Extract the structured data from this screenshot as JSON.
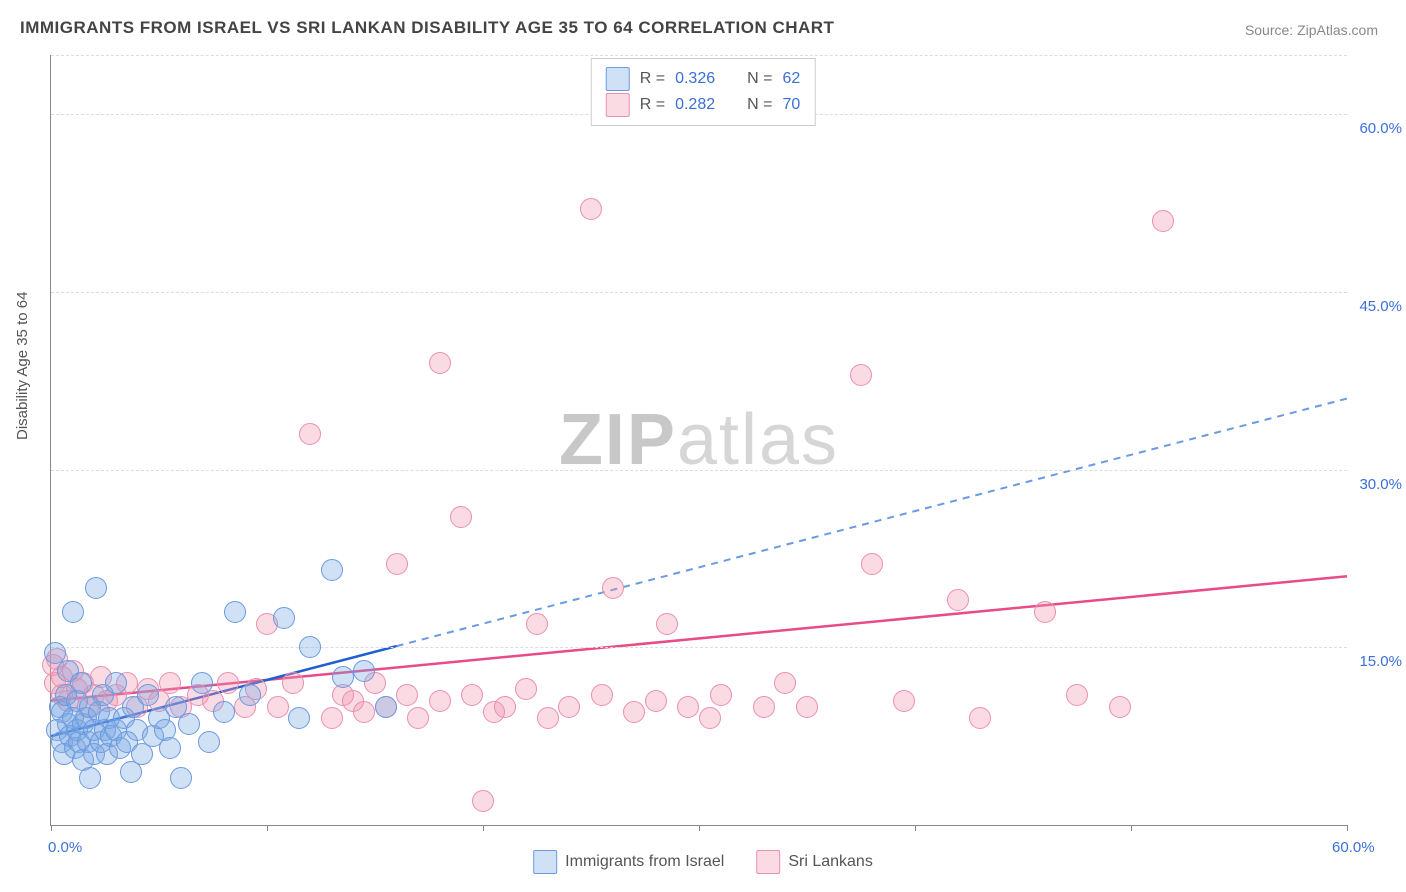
{
  "title": "IMMIGRANTS FROM ISRAEL VS SRI LANKAN DISABILITY AGE 35 TO 64 CORRELATION CHART",
  "source_label": "Source:",
  "source_value": "ZipAtlas.com",
  "ylabel": "Disability Age 35 to 64",
  "watermark_a": "ZIP",
  "watermark_b": "atlas",
  "chart": {
    "type": "scatter",
    "xlim": [
      0,
      60
    ],
    "ylim": [
      0,
      65
    ],
    "background_color": "#ffffff",
    "grid_color": "#dcdcdc",
    "axis_color": "#888888",
    "tick_label_color": "#3a6fd8",
    "tick_fontsize": 15,
    "ylabel_color": "#555555",
    "ylabel_fontsize": 15,
    "title_color": "#444444",
    "title_fontsize": 17,
    "y_gridlines": [
      15,
      30,
      45,
      60,
      65
    ],
    "y_tick_labels": [
      {
        "v": 15,
        "t": "15.0%"
      },
      {
        "v": 30,
        "t": "30.0%"
      },
      {
        "v": 45,
        "t": "45.0%"
      },
      {
        "v": 60,
        "t": "60.0%"
      }
    ],
    "x_ticks": [
      0,
      10,
      20,
      30,
      40,
      50,
      60
    ],
    "x_label_left": {
      "v": 0,
      "t": "0.0%"
    },
    "x_label_right": {
      "v": 60,
      "t": "60.0%"
    },
    "point_radius": 10,
    "point_border_width": 1.5
  },
  "series": {
    "israel": {
      "label": "Immigrants from Israel",
      "fill": "rgba(120,165,225,0.35)",
      "stroke": "#6a9ae0",
      "line_solid_color": "#1f5fd0",
      "line_dash_color": "#6a9ae0",
      "line_width": 2.5,
      "R": "0.326",
      "N": "62",
      "trend": {
        "x1": 0,
        "y1": 7.5,
        "x_solid_end": 16,
        "x2": 60,
        "y2": 36
      },
      "points": [
        [
          0.2,
          14.5
        ],
        [
          0.3,
          8
        ],
        [
          0.4,
          10
        ],
        [
          0.5,
          7
        ],
        [
          0.5,
          9.5
        ],
        [
          0.6,
          6
        ],
        [
          0.7,
          11
        ],
        [
          0.8,
          8.5
        ],
        [
          0.8,
          13
        ],
        [
          0.9,
          7.5
        ],
        [
          1.0,
          18
        ],
        [
          1.0,
          9
        ],
        [
          1.1,
          6.5
        ],
        [
          1.2,
          8
        ],
        [
          1.2,
          10.5
        ],
        [
          1.3,
          7
        ],
        [
          1.4,
          12
        ],
        [
          1.5,
          8.5
        ],
        [
          1.5,
          5.5
        ],
        [
          1.6,
          9
        ],
        [
          1.7,
          7
        ],
        [
          1.8,
          10
        ],
        [
          1.8,
          4
        ],
        [
          2.0,
          8
        ],
        [
          2.0,
          6
        ],
        [
          2.1,
          20
        ],
        [
          2.2,
          9.5
        ],
        [
          2.3,
          7
        ],
        [
          2.4,
          11
        ],
        [
          2.5,
          8
        ],
        [
          2.6,
          6
        ],
        [
          2.7,
          9
        ],
        [
          2.8,
          7.5
        ],
        [
          3.0,
          12
        ],
        [
          3.0,
          8
        ],
        [
          3.2,
          6.5
        ],
        [
          3.4,
          9
        ],
        [
          3.5,
          7
        ],
        [
          3.7,
          4.5
        ],
        [
          3.8,
          10
        ],
        [
          4.0,
          8
        ],
        [
          4.2,
          6
        ],
        [
          4.5,
          11
        ],
        [
          4.7,
          7.5
        ],
        [
          5.0,
          9
        ],
        [
          5.3,
          8
        ],
        [
          5.5,
          6.5
        ],
        [
          5.8,
          10
        ],
        [
          6.0,
          4
        ],
        [
          6.4,
          8.5
        ],
        [
          7.0,
          12
        ],
        [
          7.3,
          7
        ],
        [
          8.0,
          9.5
        ],
        [
          8.5,
          18
        ],
        [
          9.2,
          11
        ],
        [
          10.8,
          17.5
        ],
        [
          11.5,
          9
        ],
        [
          12.0,
          15
        ],
        [
          13.0,
          21.5
        ],
        [
          13.5,
          12.5
        ],
        [
          14.5,
          13
        ],
        [
          15.5,
          10
        ]
      ]
    },
    "srilanka": {
      "label": "Sri Lankans",
      "fill": "rgba(240,150,175,0.35)",
      "stroke": "#ea8fb0",
      "line_solid_color": "#e84c88",
      "line_width": 2.5,
      "R": "0.282",
      "N": "70",
      "trend": {
        "x1": 0,
        "y1": 10.5,
        "x2": 60,
        "y2": 21
      },
      "points": [
        [
          0.1,
          13.5
        ],
        [
          0.2,
          12
        ],
        [
          0.3,
          14
        ],
        [
          0.5,
          11
        ],
        [
          0.5,
          12.5
        ],
        [
          0.8,
          10.5
        ],
        [
          1.0,
          13
        ],
        [
          1.2,
          11.5
        ],
        [
          1.5,
          12
        ],
        [
          1.7,
          10
        ],
        [
          2.0,
          11
        ],
        [
          2.3,
          12.5
        ],
        [
          2.6,
          10.5
        ],
        [
          3.0,
          11
        ],
        [
          3.5,
          12
        ],
        [
          4.0,
          10
        ],
        [
          4.5,
          11.5
        ],
        [
          5.0,
          10.5
        ],
        [
          5.5,
          12
        ],
        [
          6.0,
          10
        ],
        [
          6.8,
          11
        ],
        [
          7.5,
          10.5
        ],
        [
          8.2,
          12
        ],
        [
          9.0,
          10
        ],
        [
          9.5,
          11.5
        ],
        [
          10.0,
          17
        ],
        [
          10.5,
          10
        ],
        [
          11.2,
          12
        ],
        [
          12.0,
          33
        ],
        [
          13.0,
          9
        ],
        [
          13.5,
          11
        ],
        [
          14.0,
          10.5
        ],
        [
          14.5,
          9.5
        ],
        [
          15.0,
          12
        ],
        [
          15.5,
          10
        ],
        [
          16.0,
          22
        ],
        [
          16.5,
          11
        ],
        [
          17.0,
          9
        ],
        [
          18.0,
          10.5
        ],
        [
          18.0,
          39
        ],
        [
          19.0,
          26
        ],
        [
          19.5,
          11
        ],
        [
          20.0,
          2
        ],
        [
          20.5,
          9.5
        ],
        [
          21.0,
          10
        ],
        [
          22.0,
          11.5
        ],
        [
          22.5,
          17
        ],
        [
          23.0,
          9
        ],
        [
          24.0,
          10
        ],
        [
          25.0,
          52
        ],
        [
          25.5,
          11
        ],
        [
          26.0,
          20
        ],
        [
          27.0,
          9.5
        ],
        [
          28.0,
          10.5
        ],
        [
          28.5,
          17
        ],
        [
          29.5,
          10
        ],
        [
          30.5,
          9
        ],
        [
          31.0,
          11
        ],
        [
          33.0,
          10
        ],
        [
          34.0,
          12
        ],
        [
          35.0,
          10
        ],
        [
          37.5,
          38
        ],
        [
          38.0,
          22
        ],
        [
          39.5,
          10.5
        ],
        [
          42.0,
          19
        ],
        [
          43.0,
          9
        ],
        [
          46.0,
          18
        ],
        [
          47.5,
          11
        ],
        [
          49.5,
          10
        ],
        [
          51.5,
          51
        ]
      ]
    }
  },
  "legend_top": {
    "R_label": "R =",
    "N_label": "N ="
  }
}
